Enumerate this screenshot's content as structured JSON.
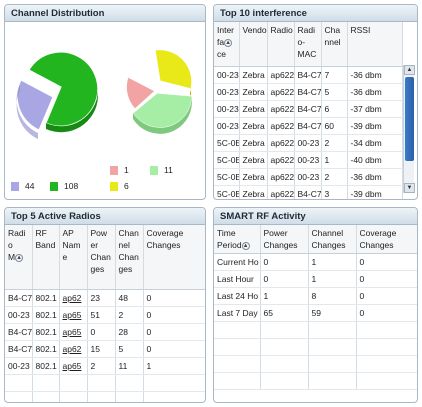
{
  "channel_distribution": {
    "title": "Channel Distribution",
    "legend": [
      {
        "value": "44",
        "color": "#a9a6e4"
      },
      {
        "value": "108",
        "color": "#22b51f"
      },
      {
        "value": "1",
        "color": "#f2a3a3"
      },
      {
        "value": "11",
        "color": "#a6eea6"
      },
      {
        "value": "6",
        "color": "#e9e91a"
      }
    ]
  },
  "interference": {
    "title": "Top 10 interference",
    "headers": [
      "Interface",
      "Vendor",
      "Radio",
      "Radio-MAC",
      "Channel",
      "RSSI"
    ],
    "rows": [
      [
        "00-23",
        "Zebra",
        "ap622",
        "B4-C7",
        "7",
        "-36 dbm"
      ],
      [
        "00-23",
        "Zebra",
        "ap622",
        "B4-C7",
        "5",
        "-36 dbm"
      ],
      [
        "00-23",
        "Zebra",
        "ap622",
        "B4-C7",
        "6",
        "-37 dbm"
      ],
      [
        "00-23",
        "Zebra",
        "ap622",
        "B4-C7",
        "60",
        "-39 dbm"
      ],
      [
        "5C-0E",
        "Zebra",
        "ap622",
        "00-23",
        "2",
        "-34 dbm"
      ],
      [
        "5C-0E",
        "Zebra",
        "ap622",
        "00-23",
        "1",
        "-40 dbm"
      ],
      [
        "5C-0E",
        "Zebra",
        "ap622",
        "00-23",
        "2",
        "-36 dbm"
      ],
      [
        "5C-0E",
        "Zebra",
        "ap622",
        "B4-C7",
        "3",
        "-39 dbm"
      ]
    ]
  },
  "active_radios": {
    "title": "Top 5 Active Radios",
    "headers": [
      "Radio MAC",
      "RF Band",
      "AP Name",
      "Power Changes",
      "Channel Changes",
      "Coverage Changes"
    ],
    "rows": [
      [
        "B4-C7",
        "802.1",
        "ap62",
        "23",
        "48",
        "0"
      ],
      [
        "00-23",
        "802.1",
        "ap65",
        "51",
        "2",
        "0"
      ],
      [
        "B4-C7",
        "802.1",
        "ap65",
        "0",
        "28",
        "0"
      ],
      [
        "B4-C7",
        "802.1",
        "ap62",
        "15",
        "5",
        "0"
      ],
      [
        "00-23",
        "802.1",
        "ap65",
        "2",
        "11",
        "1"
      ]
    ]
  },
  "smart_rf": {
    "title": "SMART RF Activity",
    "headers": [
      "Time Period",
      "Power Changes",
      "Channel Changes",
      "Coverage Changes"
    ],
    "rows": [
      [
        "Current Ho",
        "0",
        "1",
        "0"
      ],
      [
        "Last Hour",
        "0",
        "1",
        "0"
      ],
      [
        "Last 24 Ho",
        "1",
        "8",
        "0"
      ],
      [
        "Last 7 Day",
        "65",
        "59",
        "0"
      ]
    ]
  }
}
